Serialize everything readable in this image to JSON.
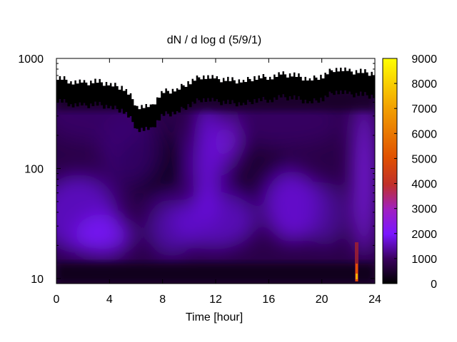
{
  "chart_data": {
    "type": "heatmap",
    "title": "dN / d log d (5/9/1)",
    "xlabel": "Time [hour]",
    "ylabel": "",
    "x_range": [
      0,
      24
    ],
    "x_ticks": [
      0,
      4,
      8,
      12,
      16,
      20,
      24
    ],
    "y_scale": "log",
    "y_range": [
      9,
      1000
    ],
    "y_ticks": [
      10,
      100,
      1000
    ],
    "colorbar": {
      "range": [
        0,
        9000
      ],
      "ticks": [
        0,
        1000,
        2000,
        3000,
        4000,
        5000,
        6000,
        7000,
        8000,
        9000
      ],
      "palette": [
        "#000000",
        "#3a005e",
        "#7a16ff",
        "#a020c0",
        "#c0302a",
        "#e06000",
        "#f2a000",
        "#ffff00"
      ]
    },
    "grid": false,
    "description_levels": {
      "background_max_diameter_by_hour": [
        {
          "x": 0,
          "y": 680
        },
        {
          "x": 1,
          "y": 620
        },
        {
          "x": 2,
          "y": 600
        },
        {
          "x": 3,
          "y": 620
        },
        {
          "x": 4,
          "y": 580
        },
        {
          "x": 5,
          "y": 540
        },
        {
          "x": 6,
          "y": 370
        },
        {
          "x": 7,
          "y": 360
        },
        {
          "x": 8,
          "y": 500
        },
        {
          "x": 9,
          "y": 520
        },
        {
          "x": 10,
          "y": 620
        },
        {
          "x": 11,
          "y": 700
        },
        {
          "x": 12,
          "y": 650
        },
        {
          "x": 13,
          "y": 640
        },
        {
          "x": 14,
          "y": 620
        },
        {
          "x": 15,
          "y": 680
        },
        {
          "x": 16,
          "y": 680
        },
        {
          "x": 17,
          "y": 720
        },
        {
          "x": 18,
          "y": 700
        },
        {
          "x": 19,
          "y": 640
        },
        {
          "x": 20,
          "y": 700
        },
        {
          "x": 21,
          "y": 820
        },
        {
          "x": 22,
          "y": 760
        },
        {
          "x": 23,
          "y": 760
        },
        {
          "x": 24,
          "y": 720
        }
      ],
      "hot_spot": {
        "x": 22.7,
        "y_min": 9,
        "y_max": 20,
        "value": 8000
      }
    }
  }
}
